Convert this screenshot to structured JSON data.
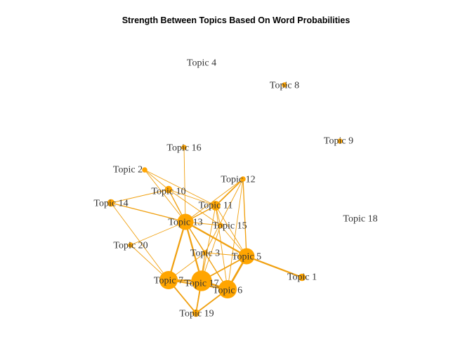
{
  "title": "Strength Between Topics Based On Word Probabilities",
  "colors": {
    "node": "#FFA500",
    "edge": "#F0A010",
    "label": "#333333"
  },
  "nodes": [
    {
      "id": 1,
      "label": "Topic 1",
      "size": 2
    },
    {
      "id": 2,
      "label": "Topic 2",
      "size": 1
    },
    {
      "id": 3,
      "label": "Topic 3",
      "size": 1
    },
    {
      "id": 4,
      "label": "Topic 4",
      "size": 0
    },
    {
      "id": 5,
      "label": "Topic 5",
      "size": 6
    },
    {
      "id": 6,
      "label": "Topic 6",
      "size": 7
    },
    {
      "id": 7,
      "label": "Topic 7",
      "size": 7
    },
    {
      "id": 8,
      "label": "Topic 8",
      "size": 1
    },
    {
      "id": 9,
      "label": "Topic 9",
      "size": 1
    },
    {
      "id": 10,
      "label": "Topic 10",
      "size": 2
    },
    {
      "id": 11,
      "label": "Topic 11",
      "size": 3
    },
    {
      "id": 12,
      "label": "Topic 12",
      "size": 1
    },
    {
      "id": 13,
      "label": "Topic 13",
      "size": 6
    },
    {
      "id": 14,
      "label": "Topic 14",
      "size": 2
    },
    {
      "id": 15,
      "label": "Topic 15",
      "size": 1
    },
    {
      "id": 16,
      "label": "Topic 16",
      "size": 1
    },
    {
      "id": 17,
      "label": "Topic 17",
      "size": 8
    },
    {
      "id": 18,
      "label": "Topic 18",
      "size": 0
    },
    {
      "id": 19,
      "label": "Topic 19",
      "size": 2
    },
    {
      "id": 20,
      "label": "Topic 20",
      "size": 1
    }
  ],
  "edges": [
    {
      "source": 5,
      "target": 1,
      "weight": 2.5
    },
    {
      "source": 5,
      "target": 6,
      "weight": 3
    },
    {
      "source": 5,
      "target": 17,
      "weight": 2
    },
    {
      "source": 5,
      "target": 13,
      "weight": 2.5
    },
    {
      "source": 5,
      "target": 11,
      "weight": 1
    },
    {
      "source": 5,
      "target": 15,
      "weight": 1
    },
    {
      "source": 5,
      "target": 12,
      "weight": 1.5
    },
    {
      "source": 5,
      "target": 3,
      "weight": 1
    },
    {
      "source": 6,
      "target": 17,
      "weight": 3
    },
    {
      "source": 6,
      "target": 7,
      "weight": 2
    },
    {
      "source": 6,
      "target": 19,
      "weight": 2
    },
    {
      "source": 6,
      "target": 13,
      "weight": 1.5
    },
    {
      "source": 6,
      "target": 11,
      "weight": 1
    },
    {
      "source": 6,
      "target": 12,
      "weight": 1
    },
    {
      "source": 7,
      "target": 17,
      "weight": 3
    },
    {
      "source": 7,
      "target": 13,
      "weight": 2.5
    },
    {
      "source": 7,
      "target": 19,
      "weight": 2
    },
    {
      "source": 7,
      "target": 20,
      "weight": 1
    },
    {
      "source": 7,
      "target": 3,
      "weight": 1
    },
    {
      "source": 17,
      "target": 13,
      "weight": 2.5
    },
    {
      "source": 17,
      "target": 19,
      "weight": 2
    },
    {
      "source": 17,
      "target": 3,
      "weight": 1
    },
    {
      "source": 17,
      "target": 11,
      "weight": 1
    },
    {
      "source": 17,
      "target": 15,
      "weight": 1
    },
    {
      "source": 13,
      "target": 10,
      "weight": 1.5
    },
    {
      "source": 13,
      "target": 11,
      "weight": 1.5
    },
    {
      "source": 13,
      "target": 20,
      "weight": 1
    },
    {
      "source": 13,
      "target": 2,
      "weight": 1
    },
    {
      "source": 13,
      "target": 16,
      "weight": 1
    },
    {
      "source": 13,
      "target": 3,
      "weight": 1
    },
    {
      "source": 13,
      "target": 15,
      "weight": 1
    },
    {
      "source": 13,
      "target": 12,
      "weight": 1
    },
    {
      "source": 10,
      "target": 14,
      "weight": 1
    },
    {
      "source": 10,
      "target": 2,
      "weight": 1
    },
    {
      "source": 10,
      "target": 11,
      "weight": 1
    },
    {
      "source": 10,
      "target": 15,
      "weight": 1
    },
    {
      "source": 11,
      "target": 12,
      "weight": 2
    },
    {
      "source": 11,
      "target": 15,
      "weight": 1
    },
    {
      "source": 14,
      "target": 13,
      "weight": 1.5
    },
    {
      "source": 14,
      "target": 7,
      "weight": 1
    },
    {
      "source": 2,
      "target": 11,
      "weight": 1
    },
    {
      "source": 3,
      "target": 12,
      "weight": 1
    },
    {
      "source": 19,
      "target": 3,
      "weight": 1
    }
  ]
}
